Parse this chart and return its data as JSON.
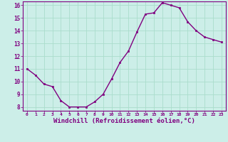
{
  "x": [
    0,
    1,
    2,
    3,
    4,
    5,
    6,
    7,
    8,
    9,
    10,
    11,
    12,
    13,
    14,
    15,
    16,
    17,
    18,
    19,
    20,
    21,
    22,
    23
  ],
  "y": [
    11.0,
    10.5,
    9.8,
    9.6,
    8.5,
    8.0,
    8.0,
    8.0,
    8.4,
    9.0,
    10.2,
    11.5,
    12.4,
    13.9,
    15.3,
    15.4,
    16.2,
    16.0,
    15.8,
    14.7,
    14.0,
    13.5,
    13.3,
    13.1
  ],
  "line_color": "#800080",
  "marker": "s",
  "marker_size": 2.0,
  "line_width": 1.0,
  "xlabel": "Windchill (Refroidissement éolien,°C)",
  "xlabel_fontsize": 6.5,
  "bg_color": "#cceee8",
  "grid_color": "#aaddcc",
  "tick_color": "#800080",
  "label_color": "#800080",
  "ylim": [
    8,
    16
  ],
  "xlim": [
    -0.5,
    23.5
  ],
  "yticks": [
    8,
    9,
    10,
    11,
    12,
    13,
    14,
    15,
    16
  ],
  "xticks": [
    0,
    1,
    2,
    3,
    4,
    5,
    6,
    7,
    8,
    9,
    10,
    11,
    12,
    13,
    14,
    15,
    16,
    17,
    18,
    19,
    20,
    21,
    22,
    23
  ]
}
